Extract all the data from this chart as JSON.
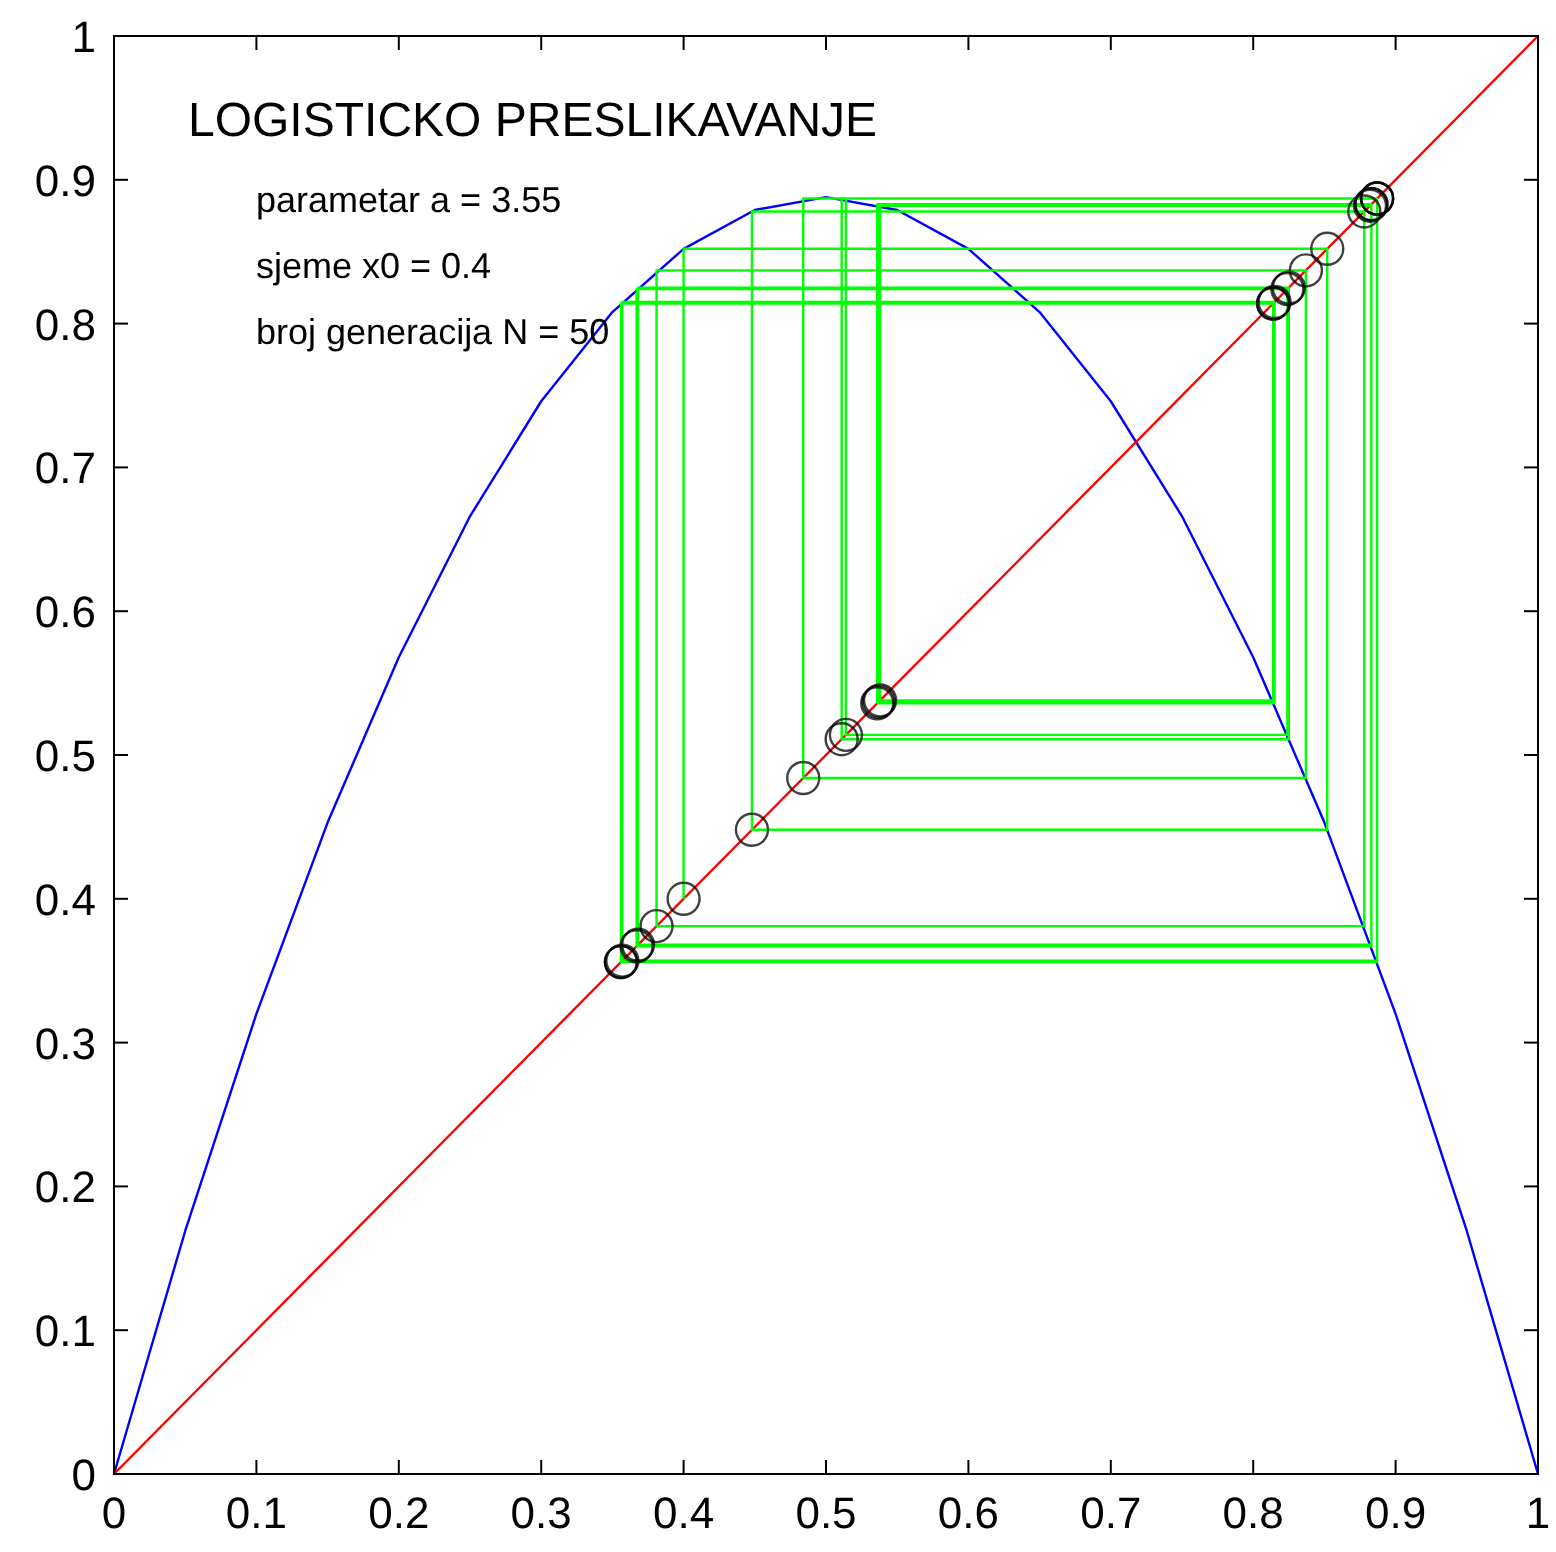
{
  "chart_data": {
    "type": "line",
    "title": "LOGISTICKO PRESLIKAVANJE",
    "annotations": [
      "parametar a = 3.55",
      "sjeme x0 = 0.4",
      "broj generacija N = 50"
    ],
    "xlim": [
      0,
      1
    ],
    "ylim": [
      0,
      1
    ],
    "xticks": [
      0,
      0.1,
      0.2,
      0.3,
      0.4,
      0.5,
      0.6,
      0.7,
      0.8,
      0.9,
      1
    ],
    "yticks": [
      0,
      0.1,
      0.2,
      0.3,
      0.4,
      0.5,
      0.6,
      0.7,
      0.8,
      0.9,
      1
    ],
    "line_style": "solid",
    "series": [
      {
        "color": "#0000ff",
        "x": [
          0,
          0.05,
          0.1,
          0.15,
          0.2,
          0.25,
          0.3,
          0.35,
          0.4,
          0.45,
          0.5,
          0.55,
          0.6,
          0.65,
          0.7,
          0.75,
          0.8,
          0.85,
          0.9,
          0.95,
          1
        ],
        "values": [
          0,
          0.169,
          0.32,
          0.453,
          0.568,
          0.666,
          0.746,
          0.808,
          0.852,
          0.879,
          0.888,
          0.879,
          0.852,
          0.808,
          0.746,
          0.666,
          0.568,
          0.453,
          0.32,
          0.169,
          0
        ]
      },
      {
        "color": "#ff0000",
        "x": [
          0,
          1
        ],
        "values": [
          0,
          1
        ]
      },
      {
        "color": "#00ff00",
        "x": [
          0.4,
          0.4,
          0.852,
          0.852,
          0.448,
          0.448,
          0.878,
          0.878,
          0.381,
          0.381,
          0.837,
          0.837,
          0.484,
          0.484,
          0.887,
          0.887,
          0.357,
          0.357,
          0.815,
          0.815,
          0.536,
          0.536,
          0.883,
          0.883,
          0.367,
          0.367,
          0.824,
          0.824,
          0.514,
          0.514,
          0.887,
          0.887,
          0.356,
          0.356,
          0.814,
          0.814,
          0.537,
          0.537,
          0.883,
          0.883,
          0.368,
          0.368,
          0.825,
          0.825,
          0.511,
          0.511,
          0.887,
          0.887,
          0.356,
          0.356,
          0.814,
          0.814,
          0.538,
          0.538,
          0.882
        ],
        "values": [
          0.4,
          0.852,
          0.852,
          0.448,
          0.448,
          0.878,
          0.878,
          0.381,
          0.381,
          0.837,
          0.837,
          0.484,
          0.484,
          0.887,
          0.887,
          0.357,
          0.357,
          0.815,
          0.815,
          0.536,
          0.536,
          0.883,
          0.883,
          0.367,
          0.367,
          0.824,
          0.824,
          0.514,
          0.514,
          0.887,
          0.887,
          0.356,
          0.356,
          0.814,
          0.814,
          0.537,
          0.537,
          0.883,
          0.883,
          0.368,
          0.368,
          0.825,
          0.825,
          0.511,
          0.511,
          0.887,
          0.887,
          0.356,
          0.356,
          0.814,
          0.814,
          0.538,
          0.538,
          0.882,
          0.882
        ]
      },
      {
        "type": "scatter",
        "marker": "circle",
        "color": "#000000",
        "x": [
          0.4,
          0.852,
          0.448,
          0.878,
          0.381,
          0.837,
          0.484,
          0.887,
          0.357,
          0.815,
          0.536,
          0.883,
          0.367,
          0.824,
          0.514,
          0.887,
          0.356,
          0.814,
          0.537,
          0.883,
          0.368,
          0.825,
          0.511,
          0.887,
          0.356,
          0.814,
          0.538,
          0.882
        ],
        "values": [
          0.4,
          0.852,
          0.448,
          0.878,
          0.381,
          0.837,
          0.484,
          0.887,
          0.357,
          0.815,
          0.536,
          0.883,
          0.367,
          0.824,
          0.514,
          0.887,
          0.356,
          0.814,
          0.537,
          0.883,
          0.368,
          0.825,
          0.511,
          0.887,
          0.356,
          0.814,
          0.538,
          0.882
        ]
      }
    ]
  }
}
